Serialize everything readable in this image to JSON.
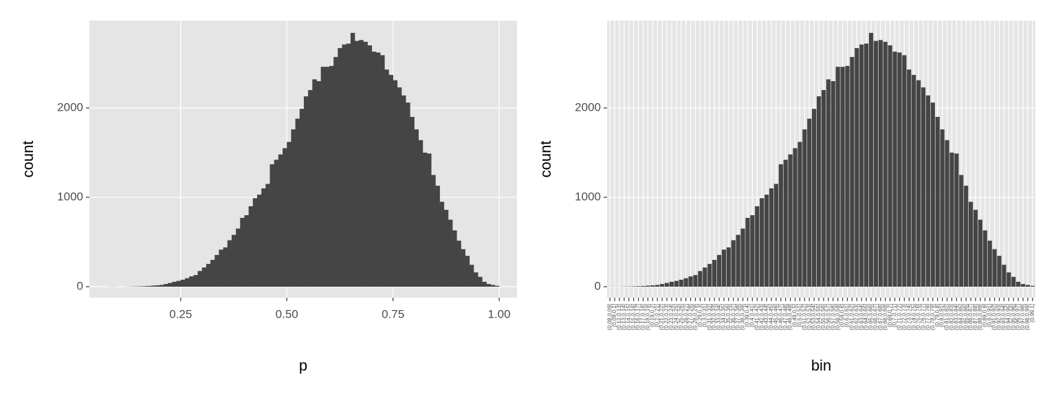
{
  "chart_data": [
    {
      "type": "histogram",
      "x_label": "p",
      "y_label": "count",
      "color": "#454545",
      "bins": [
        0.08,
        0.09,
        0.1,
        0.11,
        0.12,
        0.13,
        0.14,
        0.15,
        0.16,
        0.17,
        0.18,
        0.19,
        0.2,
        0.21,
        0.22,
        0.23,
        0.24,
        0.25,
        0.26,
        0.27,
        0.28,
        0.29,
        0.3,
        0.31,
        0.32,
        0.33,
        0.34,
        0.35,
        0.36,
        0.37,
        0.38,
        0.39,
        0.4,
        0.41,
        0.42,
        0.43,
        0.44,
        0.45,
        0.46,
        0.47,
        0.48,
        0.49,
        0.5,
        0.51,
        0.52,
        0.53,
        0.54,
        0.55,
        0.56,
        0.57,
        0.58,
        0.59,
        0.6,
        0.61,
        0.62,
        0.63,
        0.64,
        0.65,
        0.66,
        0.67,
        0.68,
        0.69,
        0.7,
        0.71,
        0.72,
        0.73,
        0.74,
        0.75,
        0.76,
        0.77,
        0.78,
        0.79,
        0.8,
        0.81,
        0.82,
        0.83,
        0.84,
        0.85,
        0.86,
        0.87,
        0.88,
        0.89,
        0.9,
        0.91,
        0.92,
        0.93,
        0.94,
        0.95,
        0.96,
        0.97,
        0.98,
        0.99,
        1
      ],
      "values": [
        1,
        1,
        0,
        0,
        1,
        2,
        3,
        4,
        6,
        8,
        12,
        15,
        20,
        30,
        42,
        55,
        65,
        78,
        95,
        115,
        130,
        175,
        215,
        255,
        300,
        355,
        415,
        440,
        520,
        580,
        650,
        770,
        800,
        900,
        990,
        1030,
        1100,
        1150,
        1370,
        1420,
        1480,
        1550,
        1620,
        1760,
        1880,
        1990,
        2130,
        2200,
        2320,
        2300,
        2460,
        2460,
        2470,
        2570,
        2670,
        2710,
        2720,
        2840,
        2750,
        2760,
        2740,
        2700,
        2630,
        2620,
        2590,
        2430,
        2370,
        2310,
        2230,
        2140,
        2060,
        1900,
        1760,
        1640,
        1500,
        1490,
        1250,
        1130,
        950,
        860,
        750,
        630,
        515,
        420,
        345,
        245,
        160,
        110,
        55,
        30,
        20,
        10
      ],
      "xlim": [
        0.035,
        1.042
      ],
      "xticks": [
        0.25,
        {
          "value": 0.5,
          "label": "0.50"
        },
        0.75,
        {
          "value": 1,
          "label": "1.00"
        }
      ],
      "ylim": [
        -123,
        2977
      ],
      "yticks": [
        0,
        1000,
        2000
      ]
    },
    {
      "type": "bar",
      "x_label": "bin",
      "y_label": "count",
      "color": "#454545",
      "categories": [
        "(0.08,0.09]",
        "(0.09,0.1]",
        "(0.12,0.13]",
        "(0.13,0.14]",
        "(0.14,0.15]",
        "(0.15,0.16]",
        "(0.16,0.17]",
        "(0.17,0.18]",
        "(0.18,0.19]",
        "(0.19,0.2]",
        "(0.2,0.21]",
        "(0.21,0.22]",
        "(0.22,0.23]",
        "(0.23,0.24]",
        "(0.24,0.25]",
        "(0.25,0.26]",
        "(0.26,0.27]",
        "(0.27,0.28]",
        "(0.28,0.29]",
        "(0.29,0.3]",
        "(0.3,0.31]",
        "(0.31,0.32]",
        "(0.32,0.33]",
        "(0.33,0.34]",
        "(0.34,0.35]",
        "(0.35,0.36]",
        "(0.36,0.37]",
        "(0.37,0.38]",
        "(0.38,0.39]",
        "(0.39,0.4]",
        "(0.4,0.41]",
        "(0.41,0.42]",
        "(0.42,0.43]",
        "(0.43,0.44]",
        "(0.44,0.45]",
        "(0.45,0.46]",
        "(0.46,0.47]",
        "(0.47,0.48]",
        "(0.48,0.49]",
        "(0.49,0.5]",
        "(0.5,0.51]",
        "(0.51,0.52]",
        "(0.52,0.53]",
        "(0.53,0.54]",
        "(0.54,0.55]",
        "(0.55,0.56]",
        "(0.56,0.57]",
        "(0.57,0.58]",
        "(0.58,0.59]",
        "(0.59,0.6]",
        "(0.6,0.61]",
        "(0.61,0.62]",
        "(0.62,0.63]",
        "(0.63,0.64]",
        "(0.64,0.65]",
        "(0.65,0.66]",
        "(0.66,0.67]",
        "(0.67,0.68]",
        "(0.68,0.69]",
        "(0.69,0.7]",
        "(0.7,0.71]",
        "(0.71,0.72]",
        "(0.72,0.73]",
        "(0.73,0.74]",
        "(0.74,0.75]",
        "(0.75,0.76]",
        "(0.76,0.77]",
        "(0.77,0.78]",
        "(0.78,0.79]",
        "(0.79,0.8]",
        "(0.8,0.81]",
        "(0.81,0.82]",
        "(0.82,0.83]",
        "(0.83,0.84]",
        "(0.84,0.85]",
        "(0.85,0.86]",
        "(0.86,0.87]",
        "(0.87,0.88]",
        "(0.88,0.89]",
        "(0.89,0.9]",
        "(0.9,0.91]",
        "(0.91,0.92]",
        "(0.92,0.93]",
        "(0.93,0.94]",
        "(0.94,0.95]",
        "(0.95,0.96]",
        "(0.96,0.97]",
        "(0.97,0.98]",
        "(0.98,0.99]",
        "(0.99,1]"
      ],
      "values": [
        1,
        1,
        1,
        2,
        3,
        4,
        6,
        8,
        12,
        15,
        20,
        30,
        42,
        55,
        65,
        78,
        95,
        115,
        130,
        175,
        215,
        255,
        300,
        355,
        415,
        440,
        520,
        580,
        650,
        770,
        800,
        900,
        990,
        1030,
        1100,
        1150,
        1370,
        1420,
        1480,
        1550,
        1620,
        1760,
        1880,
        1990,
        2130,
        2200,
        2320,
        2300,
        2460,
        2460,
        2470,
        2570,
        2670,
        2710,
        2720,
        2840,
        2750,
        2760,
        2740,
        2700,
        2630,
        2620,
        2590,
        2430,
        2370,
        2310,
        2230,
        2140,
        2060,
        1900,
        1760,
        1640,
        1500,
        1490,
        1250,
        1130,
        950,
        860,
        750,
        630,
        515,
        420,
        345,
        245,
        160,
        110,
        55,
        30,
        20,
        10
      ],
      "ylim": [
        -123,
        2977
      ],
      "yticks": [
        0,
        1000,
        2000
      ]
    }
  ]
}
